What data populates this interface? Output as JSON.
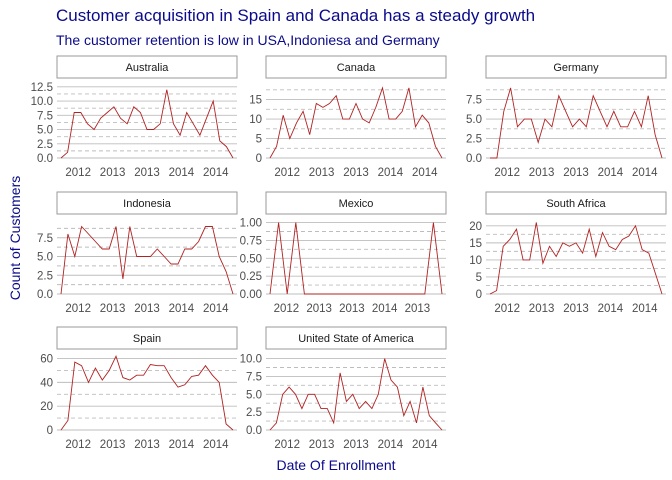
{
  "title": "Customer acquisition in Spain and Canada has a steady growth",
  "subtitle": "The customer retention is low in USA,Indoniesa and  Germany",
  "xlabel": "Date Of Enrollment",
  "ylabel": "Count of Customers",
  "colors": {
    "series": "#b22222",
    "title": "#0a0a8a"
  },
  "chart_data": {
    "type": "line",
    "facet": true,
    "panels": [
      {
        "name": "Australia",
        "ylim": [
          0,
          13
        ],
        "yticks": [
          0,
          2.5,
          5,
          7.5,
          10,
          12.5
        ],
        "ytick_labels": [
          "0.0",
          "2.5",
          "5.0",
          "7.5",
          "10.0",
          "12.5"
        ],
        "xlim": [
          0,
          20
        ],
        "xticks": [
          2,
          6,
          10,
          14,
          18
        ],
        "xtick_labels": [
          "2012",
          "2013",
          "2013",
          "2014",
          "2014"
        ],
        "values": [
          0,
          1,
          8,
          8,
          6,
          5,
          7,
          8,
          9,
          7,
          6,
          9,
          8,
          5,
          5,
          6,
          12,
          6,
          4,
          8,
          6,
          4,
          7,
          10,
          3,
          2,
          0
        ]
      },
      {
        "name": "Canada",
        "ylim": [
          0,
          19
        ],
        "yticks": [
          0,
          5,
          10,
          15
        ],
        "ytick_labels": [
          "0",
          "5",
          "10",
          "15"
        ],
        "xlim": [
          0,
          20
        ],
        "xticks": [
          2,
          6,
          10,
          14,
          18
        ],
        "xtick_labels": [
          "2012",
          "2013",
          "2013",
          "2014",
          "2014"
        ],
        "values": [
          0,
          3,
          11,
          5,
          9,
          12,
          6,
          14,
          13,
          14,
          16,
          10,
          10,
          14,
          10,
          9,
          13,
          18,
          10,
          10,
          12,
          18,
          8,
          11,
          9,
          3,
          0
        ]
      },
      {
        "name": "Germany",
        "ylim": [
          0,
          9.5
        ],
        "yticks": [
          0,
          2.5,
          5,
          7.5
        ],
        "ytick_labels": [
          "0.0",
          "2.5",
          "5.0",
          "7.5"
        ],
        "xlim": [
          0,
          20
        ],
        "xticks": [
          2,
          6,
          10,
          14,
          18
        ],
        "xtick_labels": [
          "2012",
          "2013",
          "2013",
          "2014",
          "2014"
        ],
        "values": [
          0,
          0,
          6,
          9,
          4,
          5,
          5,
          2,
          5,
          4,
          8,
          6,
          4,
          5,
          4,
          8,
          6,
          4,
          6,
          4,
          4,
          6,
          4,
          8,
          3,
          0
        ]
      },
      {
        "name": "Indonesia",
        "ylim": [
          0,
          10
        ],
        "yticks": [
          0,
          2.5,
          5,
          7.5
        ],
        "ytick_labels": [
          "0.0",
          "2.5",
          "5.0",
          "7.5"
        ],
        "xlim": [
          0,
          20
        ],
        "xticks": [
          2,
          6,
          10,
          14,
          18
        ],
        "xtick_labels": [
          "2012",
          "2013",
          "2013",
          "2014",
          "2014"
        ],
        "values": [
          0,
          8,
          5,
          9,
          8,
          7,
          6,
          6,
          9,
          2,
          9,
          5,
          5,
          5,
          6,
          5,
          4,
          4,
          6,
          6,
          7,
          9,
          9,
          5,
          3,
          0
        ]
      },
      {
        "name": "Mexico",
        "ylim": [
          0,
          1.05
        ],
        "yticks": [
          0,
          0.25,
          0.5,
          0.75,
          1
        ],
        "ytick_labels": [
          "0.00",
          "0.25",
          "0.50",
          "0.75",
          "1.00"
        ],
        "xlim": [
          0,
          21
        ],
        "xticks": [
          2,
          6,
          10,
          14,
          18
        ],
        "xtick_labels": [
          "2012",
          "2013",
          "2013",
          "2014",
          "2013"
        ],
        "values": [
          0,
          1,
          0,
          1,
          0,
          0,
          0,
          0,
          0,
          0,
          0,
          0,
          0,
          0,
          0,
          0,
          0,
          0,
          0,
          1,
          0
        ]
      },
      {
        "name": "South Africa",
        "ylim": [
          0,
          22
        ],
        "yticks": [
          0,
          5,
          10,
          15,
          20
        ],
        "ytick_labels": [
          "0",
          "5",
          "10",
          "15",
          "20"
        ],
        "xlim": [
          0,
          20
        ],
        "xticks": [
          2,
          6,
          10,
          14,
          18
        ],
        "xtick_labels": [
          "2012",
          "2013",
          "2013",
          "2014",
          "2014"
        ],
        "values": [
          0,
          1,
          14,
          16,
          19,
          10,
          10,
          21,
          9,
          14,
          11,
          15,
          14,
          15,
          12,
          19,
          11,
          18,
          14,
          13,
          16,
          17,
          20,
          13,
          12,
          6,
          0
        ]
      },
      {
        "name": "Spain",
        "ylim": [
          0,
          63
        ],
        "yticks": [
          0,
          20,
          40,
          60
        ],
        "ytick_labels": [
          "0",
          "20",
          "40",
          "60"
        ],
        "xlim": [
          0,
          20
        ],
        "xticks": [
          2,
          6,
          10,
          14,
          18
        ],
        "xtick_labels": [
          "2012",
          "2013",
          "2013",
          "2014",
          "2014"
        ],
        "values": [
          0,
          8,
          57,
          54,
          40,
          52,
          42,
          50,
          62,
          44,
          42,
          46,
          46,
          55,
          54,
          54,
          44,
          36,
          38,
          45,
          46,
          54,
          46,
          40,
          5,
          0
        ]
      },
      {
        "name": "United State of America",
        "ylim": [
          0,
          10.5
        ],
        "yticks": [
          0,
          2.5,
          5,
          7.5,
          10
        ],
        "ytick_labels": [
          "0.0",
          "2.5",
          "5.0",
          "7.5",
          "10.0"
        ],
        "xlim": [
          0,
          20
        ],
        "xticks": [
          2,
          6,
          10,
          14,
          18
        ],
        "xtick_labels": [
          "2012",
          "2013",
          "2013",
          "2014",
          "2014"
        ],
        "values": [
          0,
          1,
          5,
          6,
          5,
          3,
          5,
          5,
          3,
          3,
          1,
          8,
          4,
          5,
          3,
          4,
          3,
          5,
          10,
          7,
          6,
          2,
          4,
          1,
          6,
          2,
          1,
          0
        ]
      }
    ]
  }
}
